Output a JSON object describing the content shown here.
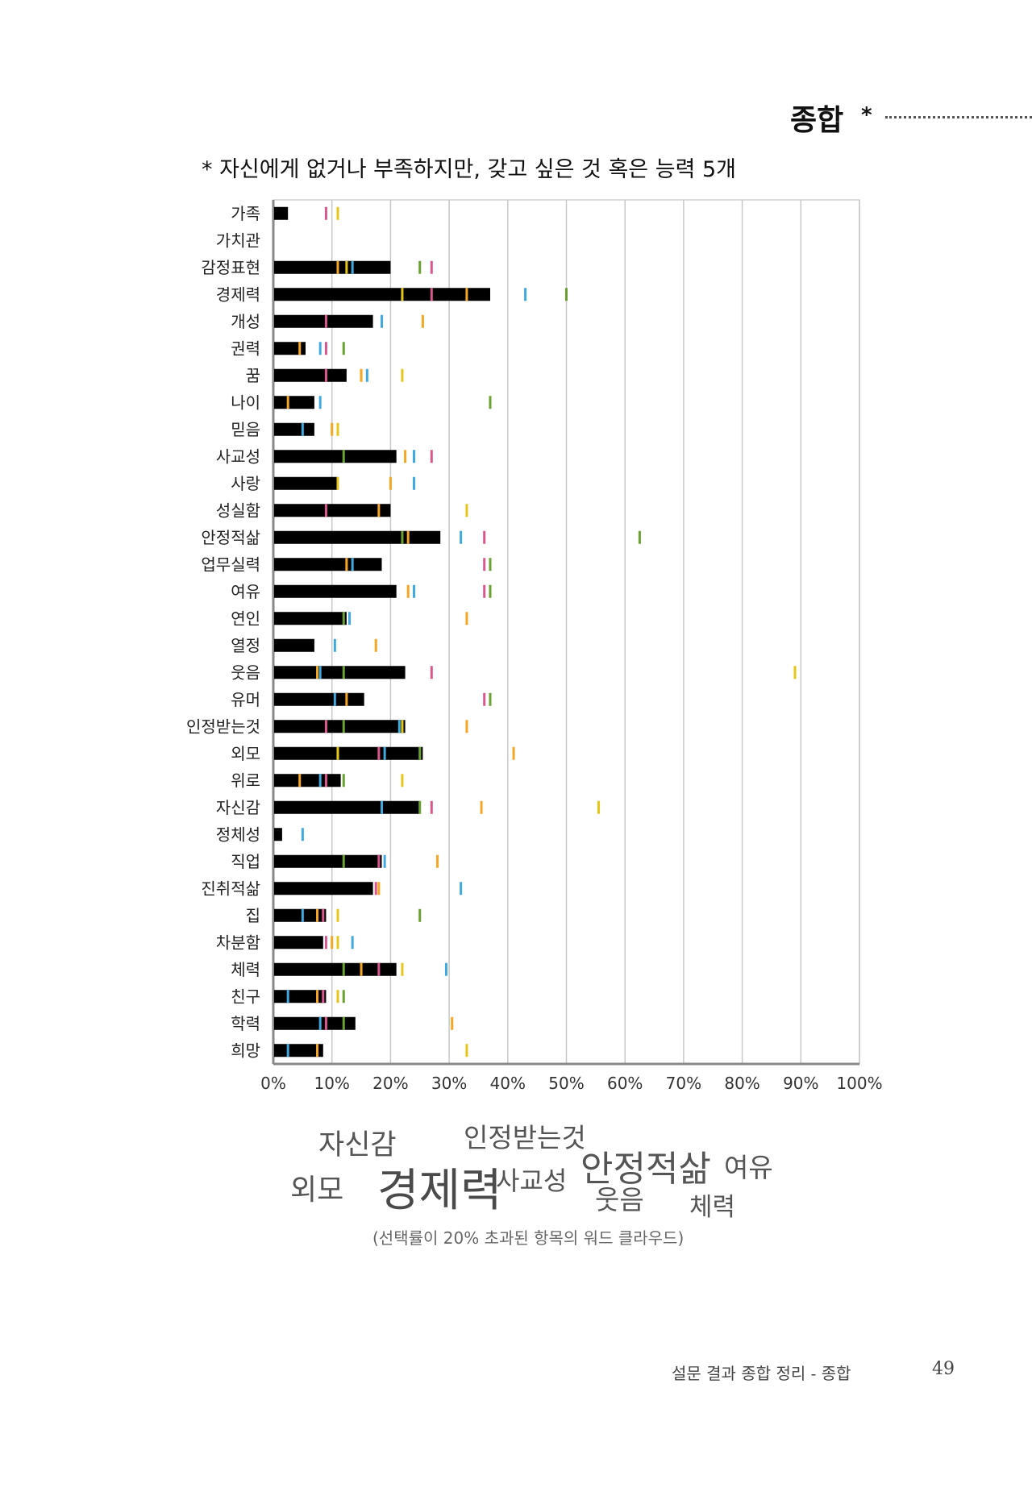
{
  "header": {
    "section_title": "종합",
    "star": "*"
  },
  "subtitle": "* 자신에게 없거나 부족하지만, 갖고 싶은 것 혹은 능력 5개",
  "colors": {
    "bar": "#000000",
    "grid": "#c8c8c8",
    "axis": "#888888",
    "markers": {
      "orange": "#f5a623",
      "yellow": "#e6c619",
      "blue": "#3fa9e0",
      "pink": "#d9578c",
      "green": "#6aa130"
    }
  },
  "chart_data": {
    "type": "bar",
    "orientation": "horizontal",
    "xlim": [
      0,
      100
    ],
    "x_ticks": [
      "0%",
      "10%",
      "20%",
      "30%",
      "40%",
      "50%",
      "60%",
      "70%",
      "80%",
      "90%",
      "100%"
    ],
    "grid": true,
    "categories": [
      "가족",
      "가치관",
      "감정표현",
      "경제력",
      "개성",
      "권력",
      "꿈",
      "나이",
      "믿음",
      "사교성",
      "사랑",
      "성실함",
      "안정적삶",
      "업무실력",
      "여유",
      "연인",
      "열정",
      "웃음",
      "유머",
      "인정받는것",
      "외모",
      "위로",
      "자신감",
      "정체성",
      "직업",
      "진취적삶",
      "집",
      "차분함",
      "체력",
      "친구",
      "학력",
      "희망"
    ],
    "values": [
      2.5,
      0,
      20,
      37,
      17,
      5.5,
      12.5,
      7,
      7,
      21,
      11,
      20,
      28.5,
      18.5,
      21,
      12.5,
      7,
      22.5,
      15.5,
      22.5,
      25.5,
      11.5,
      25,
      1.5,
      18.5,
      17,
      9,
      8.5,
      21,
      9,
      14,
      8.5
    ],
    "markers": [
      [
        [
          9,
          "pink"
        ],
        [
          11,
          "yellow"
        ]
      ],
      [],
      [
        [
          11,
          "orange"
        ],
        [
          12.5,
          "yellow"
        ],
        [
          13.5,
          "blue"
        ],
        [
          25,
          "green"
        ],
        [
          27,
          "pink"
        ]
      ],
      [
        [
          22,
          "yellow"
        ],
        [
          27,
          "pink"
        ],
        [
          33,
          "orange"
        ],
        [
          43,
          "blue"
        ],
        [
          50,
          "green"
        ]
      ],
      [
        [
          9,
          "pink"
        ],
        [
          18.5,
          "blue"
        ],
        [
          25.5,
          "orange"
        ]
      ],
      [
        [
          4.5,
          "orange"
        ],
        [
          8,
          "blue"
        ],
        [
          9,
          "pink"
        ],
        [
          12,
          "green"
        ]
      ],
      [
        [
          9,
          "pink"
        ],
        [
          15,
          "orange"
        ],
        [
          16,
          "blue"
        ],
        [
          22,
          "yellow"
        ]
      ],
      [
        [
          2.5,
          "orange"
        ],
        [
          8,
          "blue"
        ],
        [
          37,
          "green"
        ]
      ],
      [
        [
          5,
          "blue"
        ],
        [
          10,
          "orange"
        ],
        [
          11,
          "yellow"
        ]
      ],
      [
        [
          12,
          "green"
        ],
        [
          22.5,
          "orange"
        ],
        [
          24,
          "blue"
        ],
        [
          27,
          "pink"
        ]
      ],
      [
        [
          11,
          "yellow"
        ],
        [
          20,
          "orange"
        ],
        [
          24,
          "blue"
        ]
      ],
      [
        [
          9,
          "pink"
        ],
        [
          18,
          "orange"
        ],
        [
          33,
          "yellow"
        ]
      ],
      [
        [
          22,
          "green"
        ],
        [
          23,
          "orange"
        ],
        [
          32,
          "blue"
        ],
        [
          36,
          "pink"
        ],
        [
          62.5,
          "green"
        ]
      ],
      [
        [
          12.5,
          "orange"
        ],
        [
          13.5,
          "blue"
        ],
        [
          36,
          "pink"
        ],
        [
          37,
          "green"
        ]
      ],
      [
        [
          23,
          "orange"
        ],
        [
          24,
          "blue"
        ],
        [
          36,
          "pink"
        ],
        [
          37,
          "green"
        ]
      ],
      [
        [
          12,
          "green"
        ],
        [
          13,
          "blue"
        ],
        [
          33,
          "orange"
        ]
      ],
      [
        [
          10.5,
          "blue"
        ],
        [
          17.5,
          "orange"
        ]
      ],
      [
        [
          7.5,
          "orange"
        ],
        [
          8,
          "blue"
        ],
        [
          12,
          "green"
        ],
        [
          27,
          "pink"
        ],
        [
          89,
          "yellow"
        ]
      ],
      [
        [
          10.5,
          "blue"
        ],
        [
          12.5,
          "orange"
        ],
        [
          36,
          "pink"
        ],
        [
          37,
          "green"
        ]
      ],
      [
        [
          9,
          "pink"
        ],
        [
          12,
          "green"
        ],
        [
          21.5,
          "blue"
        ],
        [
          22,
          "yellow"
        ],
        [
          33,
          "orange"
        ]
      ],
      [
        [
          11,
          "yellow"
        ],
        [
          18,
          "pink"
        ],
        [
          19,
          "blue"
        ],
        [
          25,
          "green"
        ],
        [
          41,
          "orange"
        ]
      ],
      [
        [
          4.5,
          "orange"
        ],
        [
          8,
          "blue"
        ],
        [
          9,
          "pink"
        ],
        [
          12,
          "green"
        ],
        [
          22,
          "yellow"
        ]
      ],
      [
        [
          18.5,
          "blue"
        ],
        [
          25,
          "green"
        ],
        [
          27,
          "pink"
        ],
        [
          35.5,
          "orange"
        ],
        [
          55.5,
          "yellow"
        ]
      ],
      [
        [
          5,
          "blue"
        ]
      ],
      [
        [
          12,
          "green"
        ],
        [
          18,
          "pink"
        ],
        [
          19,
          "blue"
        ],
        [
          28,
          "orange"
        ]
      ],
      [
        [
          17.5,
          "pink"
        ],
        [
          18,
          "orange"
        ],
        [
          32,
          "blue"
        ]
      ],
      [
        [
          5,
          "blue"
        ],
        [
          7.5,
          "orange"
        ],
        [
          8.5,
          "pink"
        ],
        [
          11,
          "yellow"
        ],
        [
          25,
          "green"
        ]
      ],
      [
        [
          9,
          "pink"
        ],
        [
          10,
          "orange"
        ],
        [
          11,
          "yellow"
        ],
        [
          13.5,
          "blue"
        ]
      ],
      [
        [
          12,
          "green"
        ],
        [
          15,
          "orange"
        ],
        [
          18,
          "pink"
        ],
        [
          22,
          "yellow"
        ],
        [
          29.5,
          "blue"
        ]
      ],
      [
        [
          2.5,
          "blue"
        ],
        [
          7.5,
          "orange"
        ],
        [
          8.5,
          "pink"
        ],
        [
          11,
          "yellow"
        ],
        [
          12,
          "green"
        ]
      ],
      [
        [
          8,
          "blue"
        ],
        [
          9,
          "pink"
        ],
        [
          12,
          "green"
        ],
        [
          30.5,
          "orange"
        ]
      ],
      [
        [
          2.5,
          "blue"
        ],
        [
          7.5,
          "orange"
        ],
        [
          33,
          "yellow"
        ]
      ]
    ]
  },
  "word_cloud": [
    "자신감",
    "인정받는것",
    "외모",
    "경제력",
    "사교성",
    "안정적삶",
    "웃음",
    "여유",
    "체력"
  ],
  "caption": "(선택률이 20% 초과된 항목의 워드 클라우드)",
  "footer": {
    "text": "설문 결과 종합 정리 - 종합",
    "page": "49"
  }
}
